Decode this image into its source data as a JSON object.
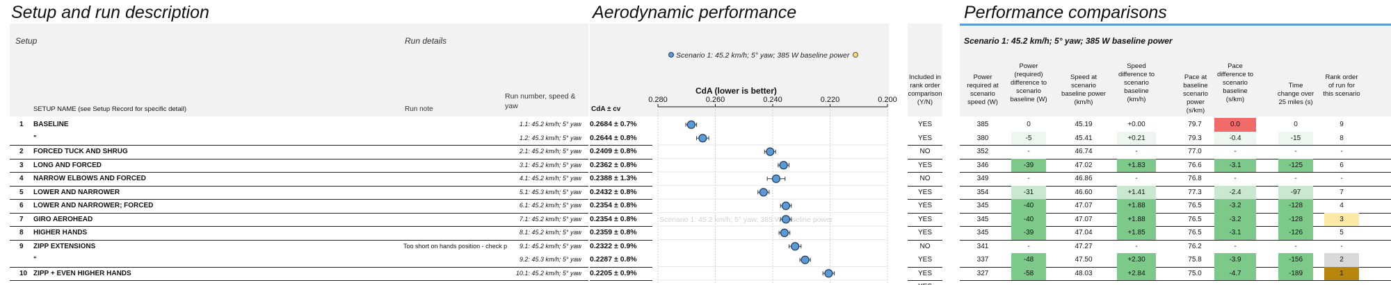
{
  "sections": {
    "setup_title": "Setup and run description",
    "aero_title": "Aerodynamic performance",
    "perf_title": "Performance comparisons"
  },
  "setup_headers": {
    "setup": "Setup",
    "run_details": "Run details",
    "run_number": "Run number, speed & yaw",
    "setup_name": "SETUP NAME (see Setup Record for specific detail)",
    "run_note": "Run note",
    "cda_cv": "CdA ± cv"
  },
  "aero": {
    "legend_label": "Scenario 1: 45.2 km/h; 5° yaw; 385 W baseline power",
    "chart_title": "CdA (lower is better)",
    "watermark": "Scenario 1: 45.2 km/h; 5° yaw; 385 W baseline power"
  },
  "perf": {
    "included_header": "Included in rank order comparison (Y/N)",
    "scenario_label": "Scenario 1: 45.2 km/h; 5° yaw; 385 W baseline power",
    "headers": [
      "Power required at scenario speed (W)",
      "Power (required) difference to scenario baseline (W)",
      "Speed at scenario baseline power (km/h)",
      "Speed difference to scenario baseline (km/h)",
      "Pace at baseline scenario power (s/km)",
      "Pace difference to scenario baseline (s/km)",
      "Time change over 25 miles (s)",
      "Rank order of run for this scenario"
    ]
  },
  "colors": {
    "accent_blue": "#5b9bd5",
    "green_strong": "#7cc98a",
    "green_light": "#c9e8cf",
    "red": "#f26b6b",
    "gold": "#b8860b",
    "silver": "#d9d9d9",
    "bronze": "#fde9a6"
  },
  "chart_data": {
    "type": "scatter",
    "xlabel": "CdA (lower is better)",
    "xlim": [
      0.28,
      0.2
    ],
    "xticks": [
      "0.280",
      "0.260",
      "0.240",
      "0.220",
      "0.200"
    ],
    "series": [
      {
        "name": "Scenario 1: 45.2 km/h; 5° yaw; 385 W baseline power",
        "values": [
          0.2684,
          0.2644,
          0.2409,
          0.2362,
          0.2388,
          0.2432,
          0.2354,
          0.2354,
          0.2359,
          0.2322,
          0.2287,
          0.2205
        ]
      }
    ],
    "cv_percent": [
      0.7,
      0.8,
      0.8,
      0.8,
      1.3,
      0.8,
      0.8,
      0.8,
      0.8,
      0.9,
      0.8,
      0.9
    ]
  },
  "rows": [
    {
      "num": "1",
      "name": "BASELINE",
      "note": "",
      "run": "1.1: 45.2 km/h; 5° yaw",
      "cda": "0.2684 ± 0.7%",
      "incl": "YES",
      "pw": "385",
      "pd": "0",
      "sp": "45.19",
      "sd": "+0.00",
      "pa": "79.7",
      "pad": "0.0",
      "tc": "0",
      "rk": "9",
      "pdc": "",
      "sdc": "",
      "padc": "red",
      "tcc": "",
      "rkc": ""
    },
    {
      "num": "",
      "name": "\"",
      "note": "",
      "run": "1.2: 45.3 km/h; 5° yaw",
      "cda": "0.2644 ± 0.8%",
      "incl": "YES",
      "pw": "380",
      "pd": "-5",
      "sp": "45.41",
      "sd": "+0.21",
      "pa": "79.3",
      "pad": "-0.4",
      "tc": "-15",
      "rk": "8",
      "pdc": "faint",
      "sdc": "faint",
      "padc": "faint",
      "tcc": "faint",
      "rkc": ""
    },
    {
      "num": "2",
      "name": "FORCED TUCK AND SHRUG",
      "note": "",
      "run": "2.1: 45.2 km/h; 5° yaw",
      "cda": "0.2409 ± 0.8%",
      "incl": "NO",
      "pw": "352",
      "pd": "-",
      "sp": "46.74",
      "sd": "-",
      "pa": "77.0",
      "pad": "-",
      "tc": "-",
      "rk": "-",
      "pdc": "",
      "sdc": "",
      "padc": "",
      "tcc": "",
      "rkc": ""
    },
    {
      "num": "3",
      "name": "LONG AND FORCED",
      "note": "",
      "run": "3.1: 45.2 km/h; 5° yaw",
      "cda": "0.2362 ± 0.8%",
      "incl": "YES",
      "pw": "346",
      "pd": "-39",
      "sp": "47.02",
      "sd": "+1.83",
      "pa": "76.6",
      "pad": "-3.1",
      "tc": "-125",
      "rk": "6",
      "pdc": "green",
      "sdc": "green",
      "padc": "green",
      "tcc": "green",
      "rkc": ""
    },
    {
      "num": "4",
      "name": "NARROW ELBOWS AND FORCED",
      "note": "",
      "run": "4.1: 45.2 km/h; 5° yaw",
      "cda": "0.2388 ± 1.3%",
      "incl": "NO",
      "pw": "349",
      "pd": "-",
      "sp": "46.86",
      "sd": "-",
      "pa": "76.8",
      "pad": "-",
      "tc": "-",
      "rk": "-",
      "pdc": "",
      "sdc": "",
      "padc": "",
      "tcc": "",
      "rkc": ""
    },
    {
      "num": "5",
      "name": "LOWER AND NARROWER",
      "note": "",
      "run": "5.1: 45.3 km/h; 5° yaw",
      "cda": "0.2432 ± 0.8%",
      "incl": "YES",
      "pw": "354",
      "pd": "-31",
      "sp": "46.60",
      "sd": "+1.41",
      "pa": "77.3",
      "pad": "-2.4",
      "tc": "-97",
      "rk": "7",
      "pdc": "greenl",
      "sdc": "greenl",
      "padc": "greenl",
      "tcc": "greenl",
      "rkc": ""
    },
    {
      "num": "6",
      "name": "LOWER AND NARROWER; FORCED",
      "note": "",
      "run": "6.1: 45.2 km/h; 5° yaw",
      "cda": "0.2354 ± 0.8%",
      "incl": "YES",
      "pw": "345",
      "pd": "-40",
      "sp": "47.07",
      "sd": "+1.88",
      "pa": "76.5",
      "pad": "-3.2",
      "tc": "-128",
      "rk": "4",
      "pdc": "green",
      "sdc": "green",
      "padc": "green",
      "tcc": "green",
      "rkc": ""
    },
    {
      "num": "7",
      "name": "GIRO AEROHEAD",
      "note": "",
      "run": "7.1: 45.2 km/h; 5° yaw",
      "cda": "0.2354 ± 0.8%",
      "incl": "YES",
      "pw": "345",
      "pd": "-40",
      "sp": "47.07",
      "sd": "+1.88",
      "pa": "76.5",
      "pad": "-3.2",
      "tc": "-128",
      "rk": "3",
      "pdc": "green",
      "sdc": "green",
      "padc": "green",
      "tcc": "green",
      "rkc": "bronze"
    },
    {
      "num": "8",
      "name": "HIGHER HANDS",
      "note": "",
      "run": "8.1: 45.2 km/h; 5° yaw",
      "cda": "0.2359 ± 0.8%",
      "incl": "YES",
      "pw": "345",
      "pd": "-39",
      "sp": "47.04",
      "sd": "+1.85",
      "pa": "76.5",
      "pad": "-3.1",
      "tc": "-126",
      "rk": "5",
      "pdc": "green",
      "sdc": "green",
      "padc": "green",
      "tcc": "green",
      "rkc": ""
    },
    {
      "num": "9",
      "name": "ZIPP EXTENSIONS",
      "note": "Too short on hands position - check p",
      "run": "9.1: 45.2 km/h; 5° yaw",
      "cda": "0.2322 ± 0.9%",
      "incl": "NO",
      "pw": "341",
      "pd": "-",
      "sp": "47.27",
      "sd": "-",
      "pa": "76.2",
      "pad": "-",
      "tc": "-",
      "rk": "-",
      "pdc": "",
      "sdc": "",
      "padc": "",
      "tcc": "",
      "rkc": ""
    },
    {
      "num": "",
      "name": "\"",
      "note": "",
      "run": "9.2: 45.3 km/h; 5° yaw",
      "cda": "0.2287 ± 0.8%",
      "incl": "YES",
      "pw": "337",
      "pd": "-48",
      "sp": "47.50",
      "sd": "+2.30",
      "pa": "75.8",
      "pad": "-3.9",
      "tc": "-156",
      "rk": "2",
      "pdc": "green",
      "sdc": "green",
      "padc": "green",
      "tcc": "green",
      "rkc": "silver"
    },
    {
      "num": "10",
      "name": "ZIPP + EVEN HIGHER HANDS",
      "note": "",
      "run": "10.1: 45.2 km/h; 5° yaw",
      "cda": "0.2205 ± 0.9%",
      "incl": "YES",
      "pw": "327",
      "pd": "-58",
      "sp": "48.03",
      "sd": "+2.84",
      "pa": "75.0",
      "pad": "-4.7",
      "tc": "-189",
      "rk": "1",
      "pdc": "green",
      "sdc": "green",
      "padc": "green",
      "tcc": "green",
      "rkc": "gold"
    }
  ],
  "trailing": {
    "incl": "YES"
  }
}
